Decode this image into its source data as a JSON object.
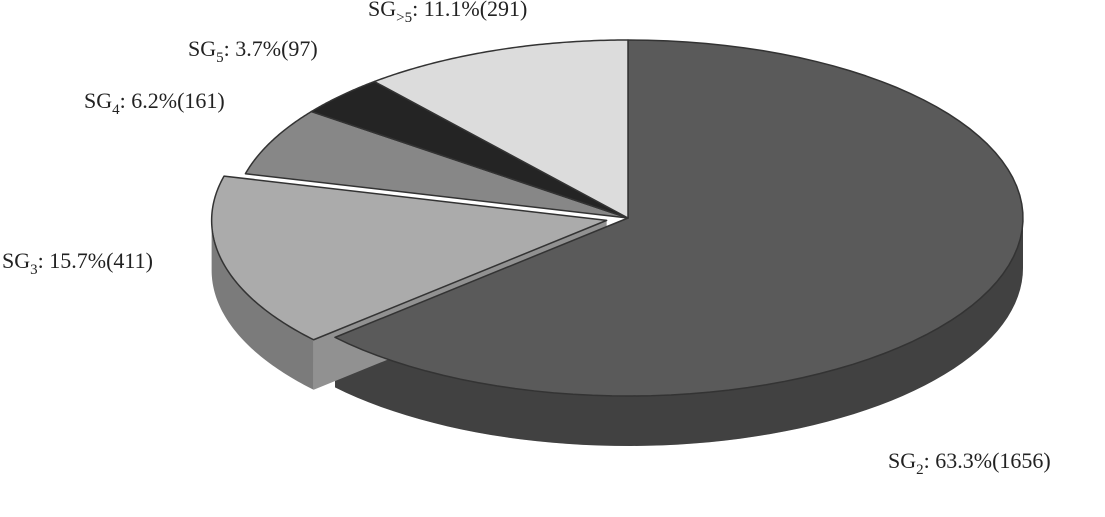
{
  "chart_data": {
    "type": "pie3d",
    "categories": [
      "SG2",
      "SG3",
      "SG4",
      "SG5",
      "SG>5"
    ],
    "values": [
      63.3,
      15.7,
      6.2,
      3.7,
      11.1
    ],
    "value_labels": [
      ": 63.3%(1656)",
      ": 15.7%(411)",
      ": 6.2%(161)",
      ": 3.7%(97)",
      ": 11.1%(291)"
    ],
    "colors": [
      "#5a5a5a",
      "#ababab",
      "#878787",
      "#242424",
      "#dcdcdc"
    ],
    "exploded": [
      false,
      true,
      false,
      false,
      false
    ]
  }
}
